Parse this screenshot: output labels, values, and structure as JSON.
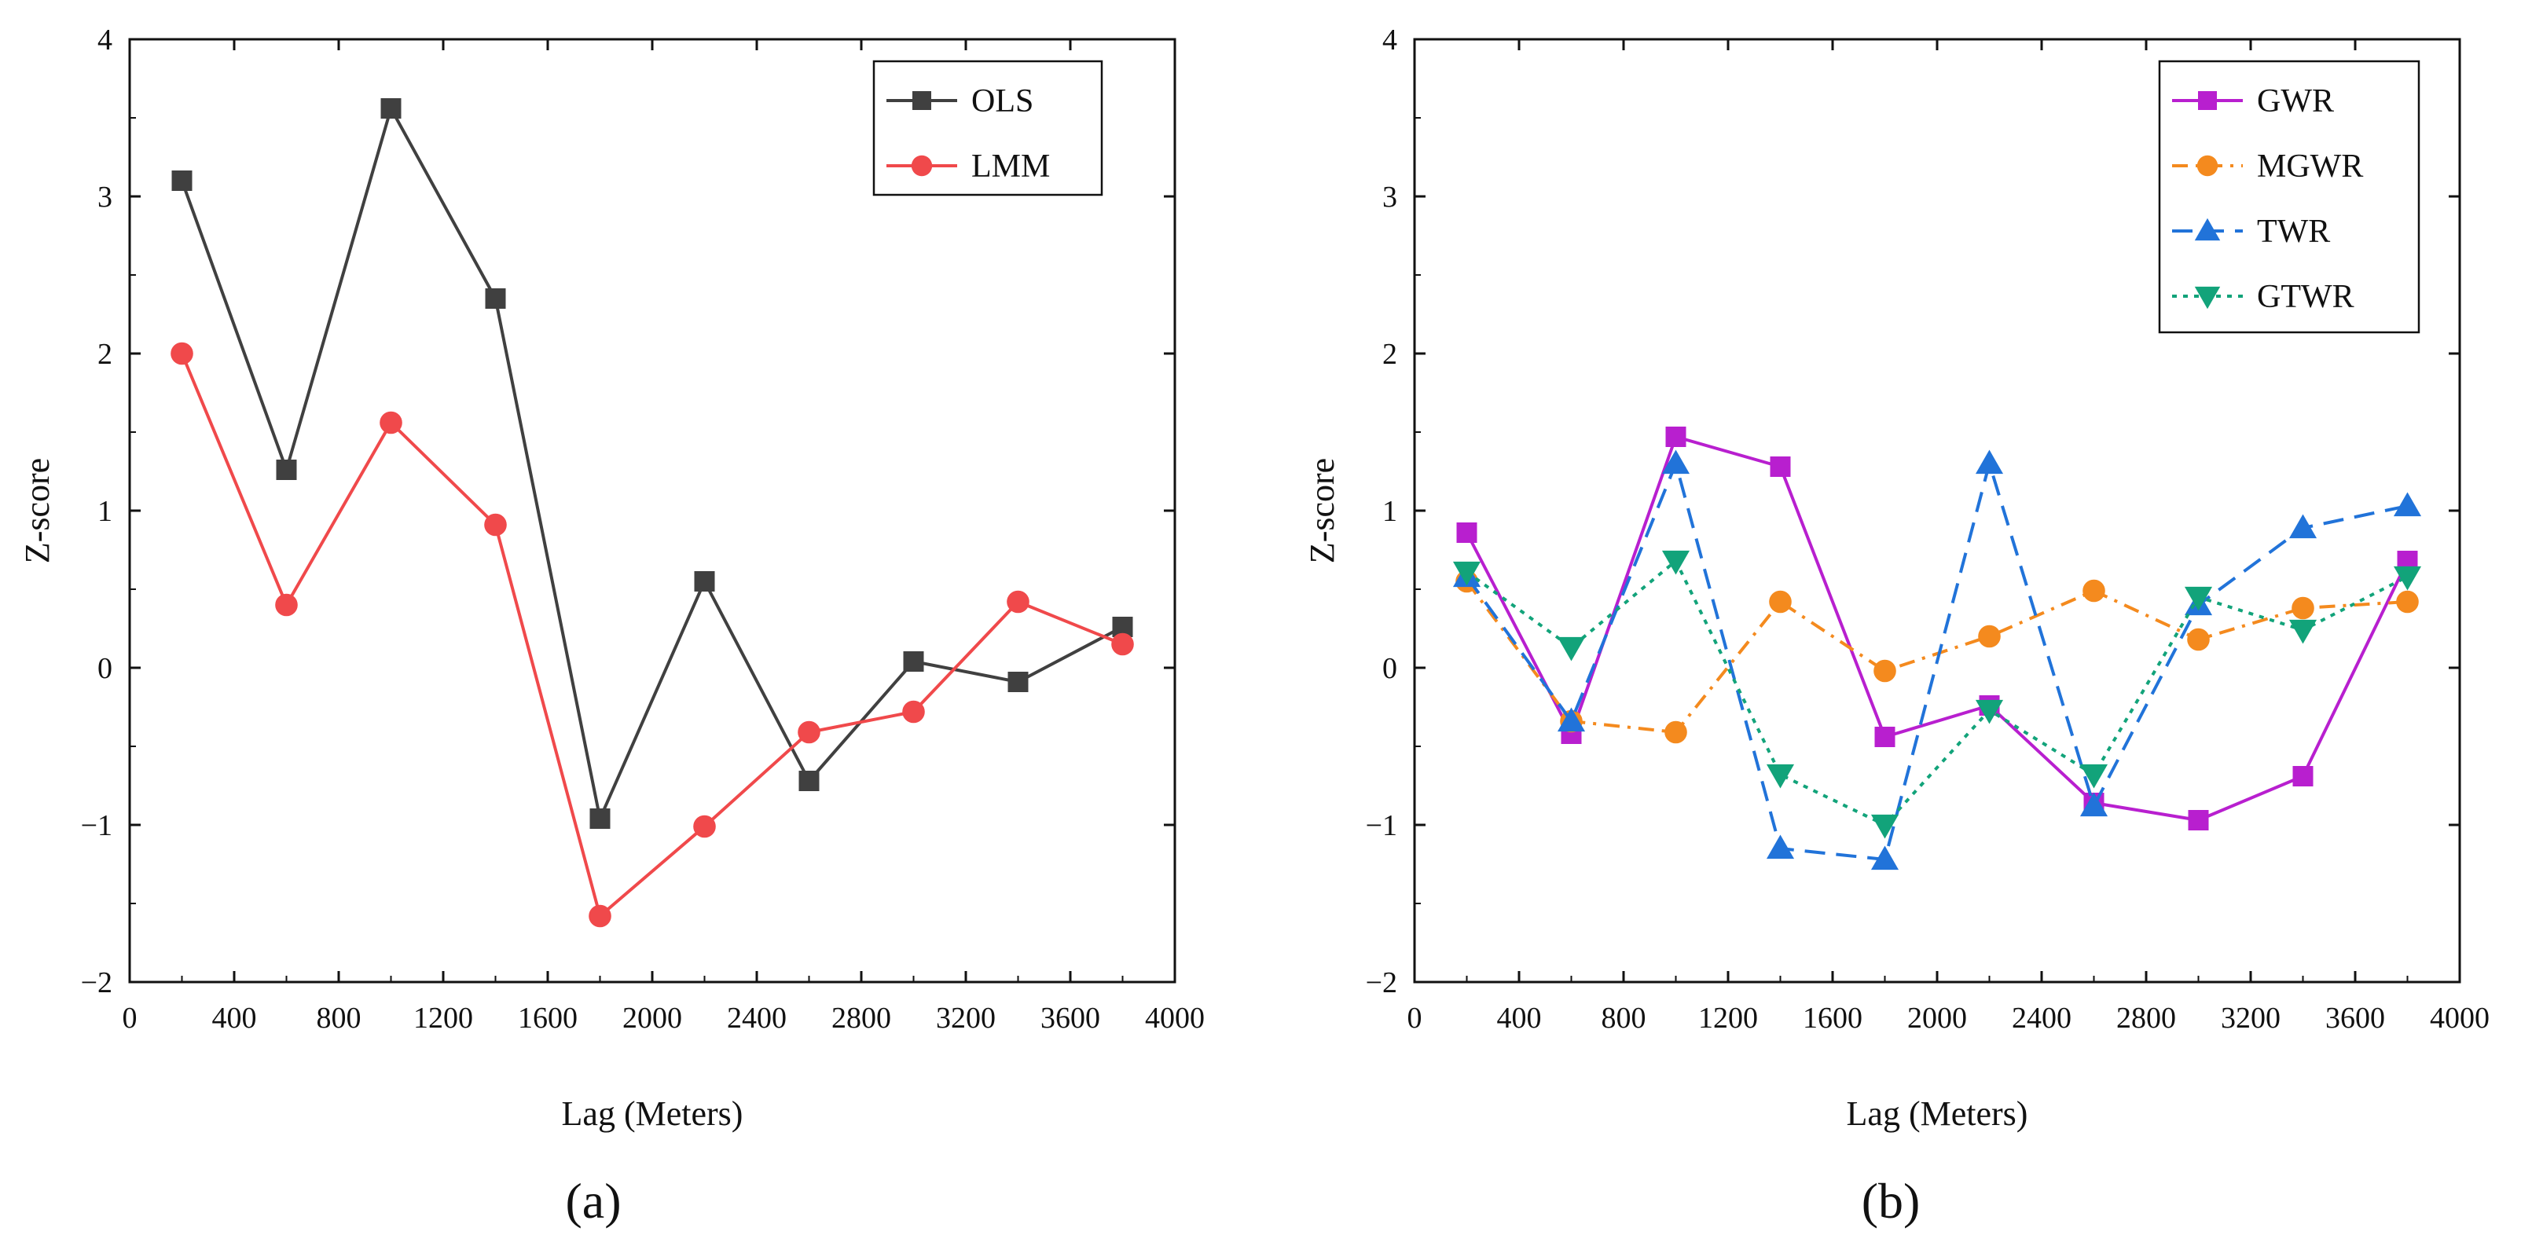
{
  "chart_data": [
    {
      "type": "line",
      "panel_label": "(a)",
      "title": "",
      "xlabel": "Lag (Meters)",
      "ylabel": "Z-score",
      "xlim": [
        0,
        4000
      ],
      "ylim": [
        -2,
        4
      ],
      "xticks": [
        0,
        400,
        800,
        1200,
        1600,
        2000,
        2400,
        2800,
        3200,
        3600,
        4000
      ],
      "yticks": [
        -2,
        -1,
        0,
        1,
        2,
        3,
        4
      ],
      "grid": false,
      "legend_position": "top-right",
      "x": [
        200,
        600,
        1000,
        1400,
        1800,
        2200,
        2600,
        3000,
        3400,
        3800
      ],
      "series": [
        {
          "name": "OLS",
          "color": "#404040",
          "marker": "square",
          "dash": "solid",
          "values": [
            3.1,
            1.26,
            3.56,
            2.35,
            -0.96,
            0.55,
            -0.72,
            0.04,
            -0.09,
            0.26
          ]
        },
        {
          "name": "LMM",
          "color": "#f0494b",
          "marker": "circle",
          "dash": "solid",
          "values": [
            2.0,
            0.4,
            1.56,
            0.91,
            -1.58,
            -1.01,
            -0.41,
            -0.28,
            0.42,
            0.15
          ]
        }
      ]
    },
    {
      "type": "line",
      "panel_label": "(b)",
      "title": "",
      "xlabel": "Lag (Meters)",
      "ylabel": "Z-score",
      "xlim": [
        0,
        4000
      ],
      "ylim": [
        -2,
        4
      ],
      "xticks": [
        0,
        400,
        800,
        1200,
        1600,
        2000,
        2400,
        2800,
        3200,
        3600,
        4000
      ],
      "yticks": [
        -2,
        -1,
        0,
        1,
        2,
        3,
        4
      ],
      "grid": false,
      "legend_position": "top-right",
      "x": [
        200,
        600,
        1000,
        1400,
        1800,
        2200,
        2600,
        3000,
        3400,
        3800
      ],
      "series": [
        {
          "name": "GWR",
          "color": "#b81fcf",
          "marker": "square",
          "dash": "solid",
          "values": [
            0.86,
            -0.42,
            1.47,
            1.28,
            -0.44,
            -0.24,
            -0.86,
            -0.97,
            -0.69,
            0.68
          ]
        },
        {
          "name": "MGWR",
          "color": "#f48a1e",
          "marker": "circle",
          "dash": "dashdot",
          "values": [
            0.55,
            -0.34,
            -0.41,
            0.42,
            -0.02,
            0.2,
            0.49,
            0.18,
            0.38,
            0.42
          ]
        },
        {
          "name": "TWR",
          "color": "#2173d9",
          "marker": "triangle-up",
          "dash": "dash",
          "values": [
            0.58,
            -0.34,
            1.3,
            -1.15,
            -1.22,
            1.3,
            -0.88,
            0.4,
            0.89,
            1.03
          ]
        },
        {
          "name": "GTWR",
          "color": "#12a37a",
          "marker": "triangle-down",
          "dash": "dot",
          "values": [
            0.61,
            0.13,
            0.68,
            -0.68,
            -1.0,
            -0.27,
            -0.68,
            0.45,
            0.24,
            0.58
          ]
        }
      ]
    }
  ]
}
